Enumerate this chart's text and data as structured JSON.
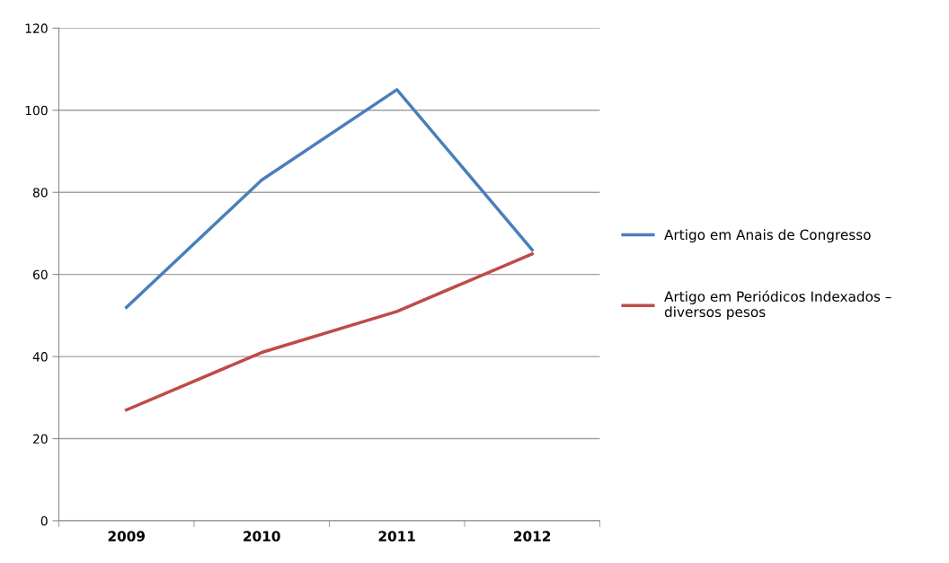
{
  "chart_data": {
    "type": "line",
    "categories": [
      "2009",
      "2010",
      "2011",
      "2012"
    ],
    "series": [
      {
        "name": "Artigo em Anais de Congresso",
        "color": "#4a7ebb",
        "values": [
          52,
          83,
          105,
          66
        ]
      },
      {
        "name": "Artigo em Periódicos Indexados –\ndiversos pesos",
        "color": "#be4b48",
        "values": [
          27,
          41,
          51,
          65
        ]
      }
    ],
    "ylim": [
      0,
      120
    ],
    "yticks": [
      0,
      20,
      40,
      60,
      80,
      100,
      120
    ],
    "grid": "y",
    "legend": "right",
    "marker": "none",
    "line_style": "solid"
  }
}
